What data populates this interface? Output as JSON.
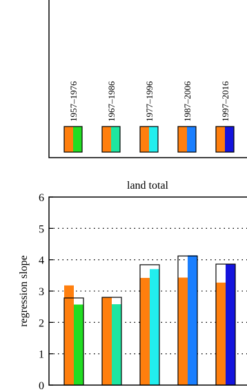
{
  "chart_data": [
    {
      "type": "legend",
      "entries": [
        {
          "label": "1957–1976",
          "colors": [
            "#ff7f0e",
            "#22dd22"
          ]
        },
        {
          "label": "1967–1986",
          "colors": [
            "#ff7f0e",
            "#1ee6a0"
          ]
        },
        {
          "label": "1977–1996",
          "colors": [
            "#ff7f0e",
            "#22eeee"
          ]
        },
        {
          "label": "1987–2006",
          "colors": [
            "#ff7f0e",
            "#1a7fff"
          ]
        },
        {
          "label": "1997–2016",
          "colors": [
            "#ff7f0e",
            "#1414dd"
          ]
        }
      ]
    },
    {
      "type": "bar",
      "title": "land total",
      "xlabel": "",
      "ylabel": "regression slope",
      "ylim": [
        0,
        6
      ],
      "yticks": [
        "0",
        "1",
        "2",
        "3",
        "4",
        "5",
        "6"
      ],
      "grid": "horizontal dotted",
      "groups": [
        {
          "orange": 3.18,
          "outline": 2.78,
          "color_value": 2.57,
          "color": "#22dd22"
        },
        {
          "orange": 2.8,
          "outline": 2.8,
          "color_value": 2.58,
          "color": "#1ee6a0"
        },
        {
          "orange": 3.42,
          "outline": 3.84,
          "color_value": 3.7,
          "color": "#22eeee"
        },
        {
          "orange": 3.43,
          "outline": 4.12,
          "color_value": 4.14,
          "color": "#1a7fff"
        },
        {
          "orange": 3.27,
          "outline": 3.86,
          "color_value": 3.86,
          "color": "#1414dd"
        }
      ]
    }
  ]
}
